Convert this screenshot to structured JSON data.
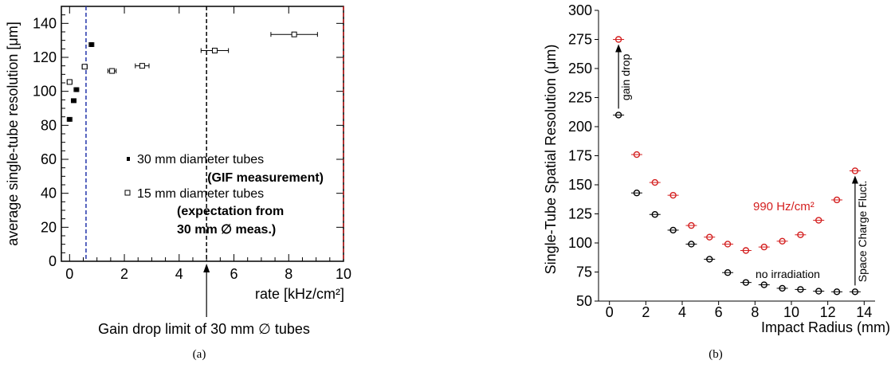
{
  "chart_data": [
    {
      "type": "scatter",
      "xlabel": "rate [kHz/cm²]",
      "ylabel": "average single-tube resolution [μm]",
      "xlim": [
        -0.3,
        10
      ],
      "ylim": [
        0,
        150
      ],
      "xticks": [
        0,
        2,
        4,
        6,
        8,
        10
      ],
      "yticks": [
        0,
        20,
        40,
        60,
        80,
        100,
        120,
        140
      ],
      "grid": false,
      "legend_position": "center-right",
      "series": [
        {
          "name": "30 mm diameter tubes",
          "name_line2": "(GIF measurement)",
          "marker": "filled-square",
          "color": "#000000",
          "points": [
            {
              "x": 0.0,
              "y": 83.5,
              "xerr": 0.03
            },
            {
              "x": 0.15,
              "y": 94.5,
              "xerr": 0.03
            },
            {
              "x": 0.25,
              "y": 101,
              "xerr": 0.03
            },
            {
              "x": 0.55,
              "y": 114.5,
              "xerr": 0.04
            },
            {
              "x": 0.8,
              "y": 127.5,
              "xerr": 0.05
            }
          ]
        },
        {
          "name": "15 mm diameter tubes",
          "name_line2": "(expectation from",
          "name_line3": "30 mm ∅ meas.)",
          "marker": "open-square",
          "color": "#000000",
          "points": [
            {
              "x": 0.0,
              "y": 105.5,
              "xerr": 0.03
            },
            {
              "x": 0.55,
              "y": 114.5,
              "xerr": 0.04
            },
            {
              "x": 1.55,
              "y": 112,
              "xerr": 0.15
            },
            {
              "x": 2.65,
              "y": 115,
              "xerr": 0.25
            },
            {
              "x": 5.3,
              "y": 124,
              "xerr": 0.5
            },
            {
              "x": 8.2,
              "y": 133.5,
              "xerr": 0.85
            }
          ]
        }
      ],
      "vlines": [
        {
          "x": 0.6,
          "color": "#2233aa",
          "style": "dashed"
        },
        {
          "x": 5.0,
          "color": "#000000",
          "style": "dashed"
        },
        {
          "x": 10.0,
          "color": "#c01818",
          "style": "dashed"
        }
      ],
      "annotation": "Gain drop limit of 30 mm ∅ tubes",
      "caption": "(a)"
    },
    {
      "type": "scatter",
      "xlabel": "Impact Radius (mm)",
      "ylabel": "Single-Tube Spatial Resolution (μm)",
      "xlim": [
        -0.6,
        14.6
      ],
      "ylim": [
        50,
        300
      ],
      "xticks": [
        0,
        2,
        4,
        6,
        8,
        10,
        12,
        14
      ],
      "yticks": [
        50,
        75,
        100,
        125,
        150,
        175,
        200,
        225,
        250,
        275,
        300
      ],
      "grid": false,
      "series": [
        {
          "name": "990 Hz/cm²",
          "color": "#d42020",
          "marker": "open-circle",
          "x": [
            0.5,
            1.5,
            2.5,
            3.5,
            4.5,
            5.5,
            6.5,
            7.5,
            8.5,
            9.5,
            10.5,
            11.5,
            12.5,
            13.5
          ],
          "y": [
            275,
            176,
            152,
            141,
            115,
            105,
            99,
            93.5,
            96.5,
            101.5,
            107,
            119.5,
            137,
            162
          ]
        },
        {
          "name": "no irradiation",
          "color": "#000000",
          "marker": "open-circle",
          "x": [
            0.5,
            1.5,
            2.5,
            3.5,
            4.5,
            5.5,
            6.5,
            7.5,
            8.5,
            9.5,
            10.5,
            11.5,
            12.5,
            13.5
          ],
          "y": [
            210,
            143,
            124.5,
            111,
            99,
            86,
            74.5,
            66,
            64,
            61,
            60,
            58.5,
            58,
            58
          ]
        }
      ],
      "arrows": [
        {
          "label": "gain drop",
          "x": 0.5,
          "from": 210,
          "to": 275
        },
        {
          "label": "Space Charge Fluct.",
          "x": 13.5,
          "from": 58,
          "to": 162
        }
      ],
      "caption": "(b)"
    }
  ]
}
